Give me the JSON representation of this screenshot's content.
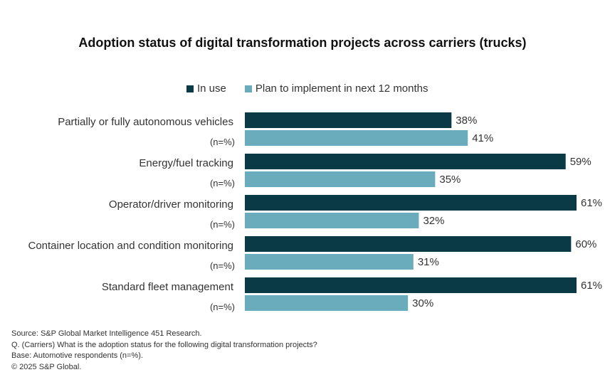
{
  "chart_data": {
    "type": "bar",
    "orientation": "horizontal",
    "title": "Adoption status of digital transformation projects across carriers (trucks)",
    "categories": [
      "Partially or fully autonomous vehicles",
      "Energy/fuel tracking",
      "Operator/driver monitoring",
      "Container location and condition monitoring",
      "Standard fleet management"
    ],
    "sublabel": "(n=%)",
    "series": [
      {
        "name": "In use",
        "color": "#0b3a47",
        "values": [
          38,
          59,
          61,
          60,
          61
        ],
        "labels": [
          "38%",
          "59%",
          "61%",
          "60%",
          "61%"
        ]
      },
      {
        "name": "Plan to implement in next 12 months",
        "color": "#6aabbc",
        "values": [
          41,
          35,
          32,
          31,
          30
        ],
        "labels": [
          "41%",
          "35%",
          "32%",
          "31%",
          "30%"
        ]
      }
    ],
    "xlim": [
      0,
      61
    ],
    "legend_position": "top",
    "grid": false
  },
  "footnotes": [
    "Source: S&P Global Market Intelligence 451 Research.",
    "Q. (Carriers) What is the adoption status for the following digital transformation projects?",
    "Base: Automotive respondents (n=%).",
    "© 2025 S&P Global."
  ]
}
